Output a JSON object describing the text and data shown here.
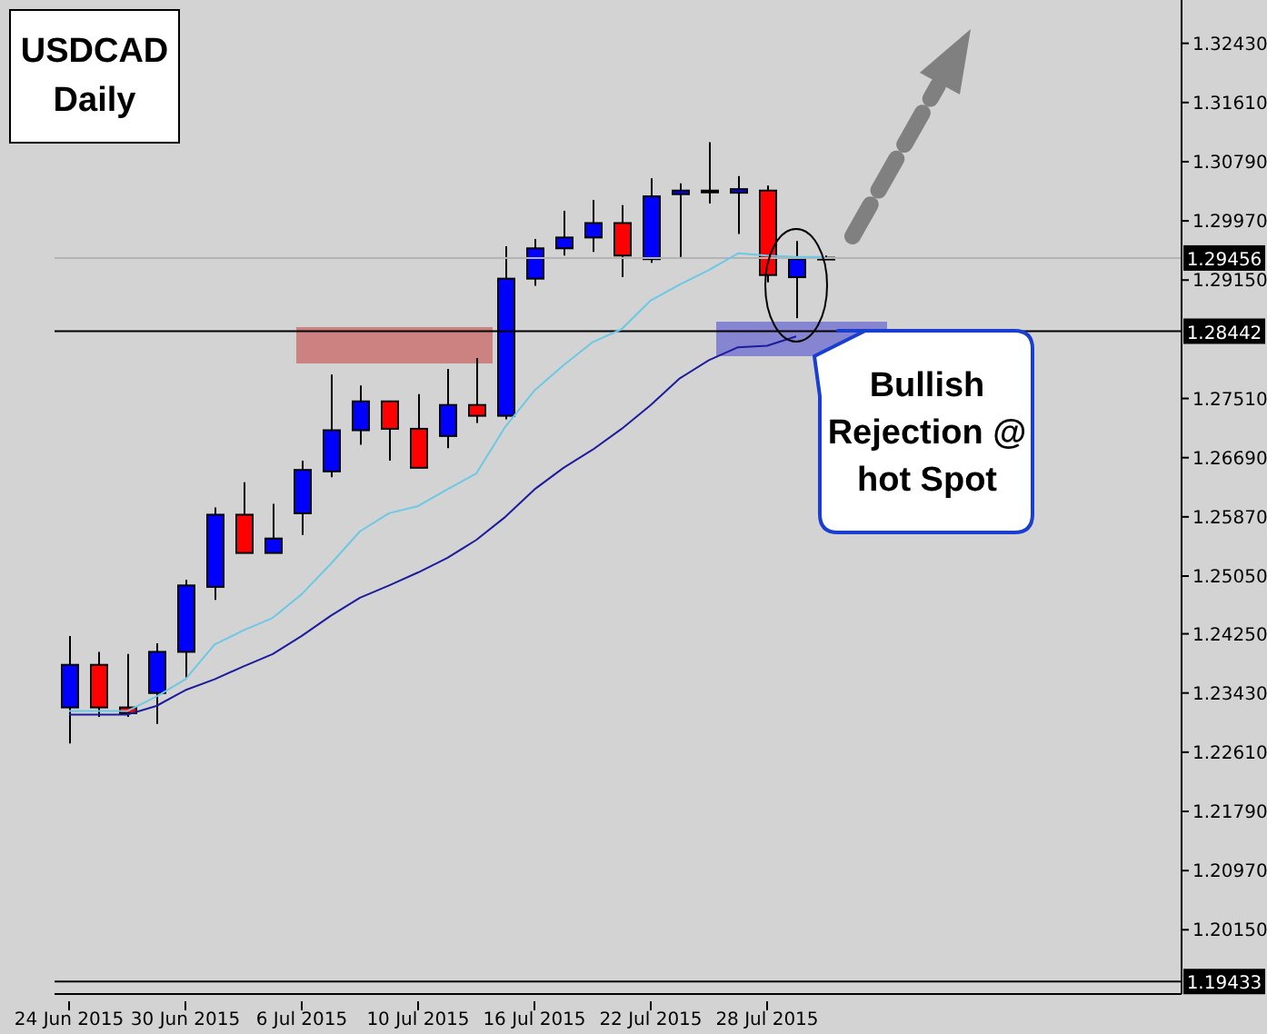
{
  "chart_data": {
    "type": "candlestick",
    "title": "USDCAD Daily",
    "categories": [
      "24 Jun 2015",
      null,
      null,
      null,
      "30 Jun 2015",
      null,
      null,
      null,
      "6 Jul 2015",
      null,
      null,
      null,
      "10 Jul 2015",
      null,
      null,
      null,
      "16 Jul 2015",
      null,
      null,
      null,
      "22 Jul 2015",
      null,
      null,
      null,
      "28 Jul 2015",
      null,
      null
    ],
    "ohlc": [
      [
        1.2323,
        1.2422,
        1.2273,
        1.2382
      ],
      [
        1.2382,
        1.24,
        1.231,
        1.2323
      ],
      [
        1.2323,
        1.2397,
        1.231,
        1.2315
      ],
      [
        1.2343,
        1.2412,
        1.23,
        1.24
      ],
      [
        1.24,
        1.25,
        1.2363,
        1.2492
      ],
      [
        1.249,
        1.26,
        1.2472,
        1.259
      ],
      [
        1.259,
        1.2635,
        1.2537,
        1.2537
      ],
      [
        1.2537,
        1.2605,
        1.2537,
        1.2557
      ],
      [
        1.2592,
        1.2665,
        1.2562,
        1.2652
      ],
      [
        1.265,
        1.2784,
        1.2642,
        1.2707
      ],
      [
        1.2707,
        1.2769,
        1.2687,
        1.2747
      ],
      [
        1.2747,
        1.2747,
        1.2665,
        1.2709
      ],
      [
        1.2709,
        1.2757,
        1.2655,
        1.2655
      ],
      [
        1.2699,
        1.2792,
        1.2682,
        1.2742
      ],
      [
        1.2742,
        1.2807,
        1.2717,
        1.2727
      ],
      [
        1.2727,
        1.2962,
        1.2722,
        1.2917
      ],
      [
        1.2917,
        1.2972,
        1.2907,
        1.2959
      ],
      [
        1.2959,
        1.3011,
        1.2949,
        1.2974
      ],
      [
        1.2974,
        1.3026,
        1.2954,
        1.2994
      ],
      [
        1.2994,
        1.3019,
        1.2919,
        1.2949
      ],
      [
        1.2944,
        1.3056,
        1.2939,
        1.3031
      ],
      [
        1.3034,
        1.3049,
        1.2947,
        1.3039
      ],
      [
        1.3039,
        1.3106,
        1.3021,
        1.3039
      ],
      [
        1.3036,
        1.3059,
        1.2979,
        1.3041
      ],
      [
        1.3039,
        1.3046,
        1.2912,
        1.2922
      ],
      [
        1.2919,
        1.2969,
        1.2862,
        1.2944
      ],
      [
        1.2944,
        1.2949,
        1.2944,
        1.2946
      ]
    ],
    "colors": [
      "#0000ff",
      "#ff0000",
      "#ff0000",
      "#0000ff",
      "#0000ff",
      "#0000ff",
      "#ff0000",
      "#0000ff",
      "#0000ff",
      "#0000ff",
      "#0000ff",
      "#ff0000",
      "#ff0000",
      "#0000ff",
      "#ff0000",
      "#0000ff",
      "#0000ff",
      "#0000ff",
      "#0000ff",
      "#ff0000",
      "#0000ff",
      "#0000ff",
      "#0000ff",
      "#0000ff",
      "#ff0000",
      "#0000ff",
      "#0000ff"
    ],
    "series": [
      {
        "type": "line",
        "color": "#6cc8e4",
        "values": [
          1.2318,
          1.2318,
          1.2318,
          1.2338,
          1.2362,
          1.241,
          1.243,
          1.2447,
          1.248,
          1.2522,
          1.2567,
          1.2592,
          1.2602,
          1.2625,
          1.2647,
          1.2712,
          1.2762,
          1.2797,
          1.2829,
          1.2847,
          1.2887,
          1.2909,
          1.2929,
          1.2952,
          1.2949,
          1.2947,
          1.2947
        ]
      },
      {
        "type": "line",
        "color": "#1c1c9c",
        "values": [
          1.2313,
          1.2313,
          1.2313,
          1.2325,
          1.2347,
          1.2362,
          1.238,
          1.2397,
          1.2422,
          1.245,
          1.2475,
          1.2492,
          1.251,
          1.253,
          1.2555,
          1.2587,
          1.2625,
          1.2655,
          1.268,
          1.2709,
          1.2742,
          1.2779,
          1.2804,
          1.2822,
          1.2824,
          1.2837,
          null
        ]
      }
    ],
    "ylim": [
      1.1926,
      1.3303
    ],
    "yticks": [
      {
        "value": 1.3243,
        "label": "1.32430"
      },
      {
        "value": 1.3161,
        "label": "1.31610"
      },
      {
        "value": 1.3079,
        "label": "1.30790"
      },
      {
        "value": 1.2997,
        "label": "1.29970"
      },
      {
        "value": 1.2915,
        "label": "1.29150"
      },
      {
        "value": 1.2751,
        "label": "1.27510"
      },
      {
        "value": 1.2669,
        "label": "1.26690"
      },
      {
        "value": 1.2587,
        "label": "1.25870"
      },
      {
        "value": 1.2505,
        "label": "1.25050"
      },
      {
        "value": 1.2425,
        "label": "1.24250"
      },
      {
        "value": 1.2343,
        "label": "1.23430"
      },
      {
        "value": 1.2261,
        "label": "1.22610"
      },
      {
        "value": 1.2179,
        "label": "1.21790"
      },
      {
        "value": 1.2097,
        "label": "1.20970"
      },
      {
        "value": 1.2015,
        "label": "1.20150"
      }
    ],
    "ref_lines": [
      {
        "axis": "y",
        "value": 1.29456,
        "label": "1.29456",
        "color": "#b4b4b4"
      },
      {
        "axis": "y",
        "value": 1.28442,
        "label": "1.28442",
        "color": "#000000"
      },
      {
        "axis": "y",
        "value": 1.19433,
        "label": "1.19433",
        "color": "#000000"
      }
    ],
    "annotations": [
      "Bullish Rejection @ hot Spot"
    ],
    "grid": false,
    "legend": false
  }
}
